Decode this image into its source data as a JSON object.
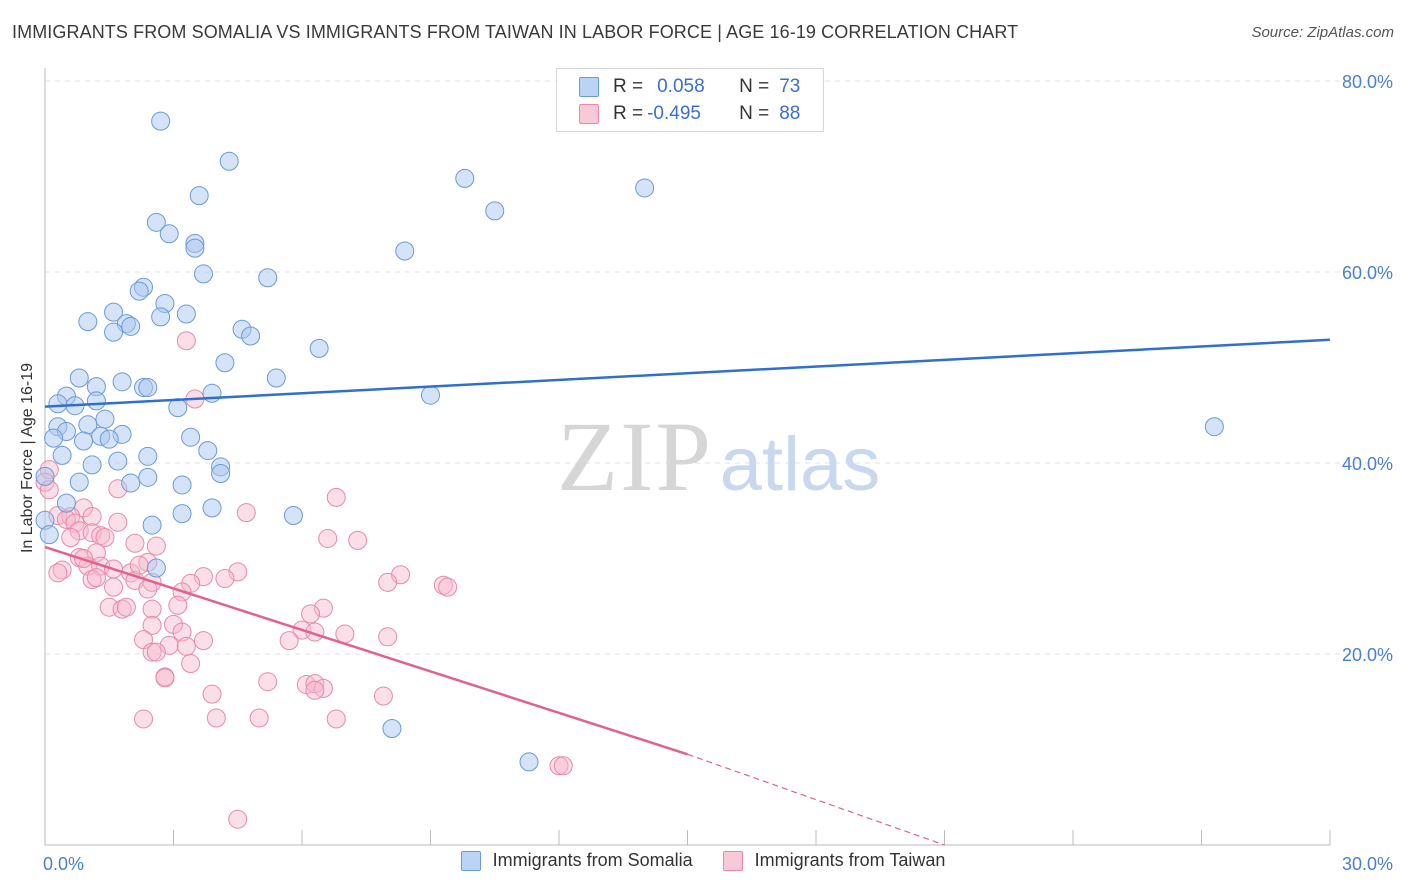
{
  "header": {
    "title": "IMMIGRANTS FROM SOMALIA VS IMMIGRANTS FROM TAIWAN IN LABOR FORCE | AGE 16-19 CORRELATION CHART",
    "source": "Source: ZipAtlas.com"
  },
  "watermark": {
    "zip": "ZIP",
    "atlas": "atlas"
  },
  "stats": {
    "somalia": {
      "r_label": "R =",
      "r_value": "0.058",
      "n_label": "N =",
      "n_value": "73"
    },
    "taiwan": {
      "r_label": "R =",
      "r_value": "-0.495",
      "n_label": "N =",
      "n_value": "88"
    }
  },
  "legend": {
    "somalia": "Immigrants from Somalia",
    "taiwan": "Immigrants from Taiwan"
  },
  "colors": {
    "somalia_fill": "#a9c8f0",
    "somalia_stroke": "#6a9ad8",
    "somalia_line": "#2f6fd0",
    "taiwan_fill": "#f6b8cb",
    "taiwan_stroke": "#e88aa8",
    "taiwan_line": "#e0628e",
    "tick_label": "#4a7fd0",
    "grid": "#e2e2e2"
  },
  "chart_data": {
    "type": "scatter",
    "title": "IMMIGRANTS FROM SOMALIA VS IMMIGRANTS FROM TAIWAN IN LABOR FORCE | AGE 16-19 CORRELATION CHART",
    "xlabel": "",
    "ylabel": "In Labor Force | Age 16-19",
    "xlim": [
      0,
      30
    ],
    "ylim": [
      0,
      80
    ],
    "x_tick_labels": [
      "0.0%",
      "30.0%"
    ],
    "y_ticks": [
      20,
      40,
      60,
      80
    ],
    "y_tick_labels": [
      "20.0%",
      "40.0%",
      "60.0%",
      "80.0%"
    ],
    "grid": true,
    "legend_position": "bottom",
    "series": [
      {
        "name": "Immigrants from Somalia",
        "trend": {
          "x": [
            0,
            30
          ],
          "y": [
            45.9,
            52.9
          ]
        },
        "points": [
          [
            2.7,
            75.8
          ],
          [
            4.3,
            71.6
          ],
          [
            9.8,
            69.8
          ],
          [
            14.0,
            68.8
          ],
          [
            3.6,
            68.0
          ],
          [
            10.5,
            66.4
          ],
          [
            2.6,
            65.2
          ],
          [
            2.9,
            64.0
          ],
          [
            3.5,
            63.0
          ],
          [
            3.5,
            62.5
          ],
          [
            8.4,
            62.2
          ],
          [
            3.7,
            59.8
          ],
          [
            5.2,
            59.4
          ],
          [
            2.3,
            58.4
          ],
          [
            2.2,
            58.0
          ],
          [
            2.8,
            56.7
          ],
          [
            1.6,
            55.8
          ],
          [
            3.3,
            55.6
          ],
          [
            2.7,
            55.3
          ],
          [
            1.0,
            54.8
          ],
          [
            1.9,
            54.6
          ],
          [
            2.0,
            54.3
          ],
          [
            1.6,
            53.7
          ],
          [
            4.6,
            54.0
          ],
          [
            4.8,
            53.3
          ],
          [
            6.4,
            52.0
          ],
          [
            4.2,
            50.5
          ],
          [
            0.8,
            48.9
          ],
          [
            5.4,
            48.9
          ],
          [
            1.8,
            48.5
          ],
          [
            1.2,
            48.0
          ],
          [
            2.3,
            47.9
          ],
          [
            2.4,
            47.9
          ],
          [
            0.5,
            47.0
          ],
          [
            3.9,
            47.3
          ],
          [
            9.0,
            47.1
          ],
          [
            0.3,
            46.2
          ],
          [
            1.2,
            46.5
          ],
          [
            0.7,
            46.0
          ],
          [
            3.1,
            45.8
          ],
          [
            1.4,
            44.6
          ],
          [
            1.0,
            44.0
          ],
          [
            0.3,
            43.8
          ],
          [
            0.5,
            43.3
          ],
          [
            1.8,
            43.0
          ],
          [
            1.3,
            42.8
          ],
          [
            1.5,
            42.5
          ],
          [
            3.4,
            42.7
          ],
          [
            0.9,
            42.3
          ],
          [
            0.2,
            42.6
          ],
          [
            3.8,
            41.3
          ],
          [
            0.4,
            40.8
          ],
          [
            2.4,
            40.7
          ],
          [
            1.7,
            40.2
          ],
          [
            1.1,
            39.8
          ],
          [
            4.1,
            39.6
          ],
          [
            4.1,
            38.9
          ],
          [
            2.4,
            38.5
          ],
          [
            0.8,
            38.0
          ],
          [
            3.2,
            37.7
          ],
          [
            2.0,
            37.9
          ],
          [
            0.0,
            38.6
          ],
          [
            0.5,
            35.8
          ],
          [
            3.9,
            35.3
          ],
          [
            3.2,
            34.7
          ],
          [
            5.8,
            34.5
          ],
          [
            2.5,
            33.5
          ],
          [
            0.0,
            34.0
          ],
          [
            0.1,
            32.5
          ],
          [
            2.6,
            29.0
          ],
          [
            8.1,
            12.2
          ],
          [
            11.3,
            8.7
          ],
          [
            27.3,
            43.8
          ]
        ]
      },
      {
        "name": "Immigrants from Taiwan",
        "trend": {
          "x": [
            0,
            15
          ],
          "y": [
            31.2,
            9.5
          ]
        },
        "trend_extension": {
          "x": [
            15,
            21
          ],
          "y": [
            9.5,
            0
          ]
        },
        "points": [
          [
            0.1,
            39.3
          ],
          [
            0.0,
            38.0
          ],
          [
            0.1,
            37.2
          ],
          [
            3.3,
            52.8
          ],
          [
            3.5,
            46.7
          ],
          [
            1.7,
            37.3
          ],
          [
            6.8,
            36.4
          ],
          [
            0.9,
            35.3
          ],
          [
            4.7,
            34.8
          ],
          [
            0.3,
            34.5
          ],
          [
            0.6,
            34.4
          ],
          [
            1.1,
            34.4
          ],
          [
            0.5,
            34.1
          ],
          [
            0.7,
            33.7
          ],
          [
            1.7,
            33.8
          ],
          [
            0.8,
            32.9
          ],
          [
            1.1,
            32.7
          ],
          [
            1.3,
            32.4
          ],
          [
            0.6,
            32.2
          ],
          [
            1.4,
            32.2
          ],
          [
            6.6,
            32.1
          ],
          [
            7.3,
            31.9
          ],
          [
            2.1,
            31.6
          ],
          [
            2.6,
            31.3
          ],
          [
            1.2,
            30.6
          ],
          [
            0.8,
            30.1
          ],
          [
            2.4,
            29.6
          ],
          [
            1.0,
            29.2
          ],
          [
            1.3,
            29.2
          ],
          [
            1.6,
            28.9
          ],
          [
            0.4,
            28.8
          ],
          [
            2.0,
            28.5
          ],
          [
            3.7,
            28.1
          ],
          [
            4.5,
            28.6
          ],
          [
            8.3,
            28.3
          ],
          [
            1.1,
            27.8
          ],
          [
            2.1,
            27.7
          ],
          [
            2.5,
            27.5
          ],
          [
            3.4,
            27.4
          ],
          [
            8.0,
            27.5
          ],
          [
            9.3,
            27.2
          ],
          [
            9.4,
            27.0
          ],
          [
            1.6,
            27.0
          ],
          [
            2.4,
            26.8
          ],
          [
            3.2,
            26.5
          ],
          [
            3.1,
            25.1
          ],
          [
            1.5,
            24.9
          ],
          [
            1.8,
            24.7
          ],
          [
            1.9,
            24.9
          ],
          [
            2.5,
            24.7
          ],
          [
            6.5,
            24.8
          ],
          [
            6.2,
            24.2
          ],
          [
            3.0,
            23.1
          ],
          [
            2.5,
            23.0
          ],
          [
            6.0,
            22.5
          ],
          [
            6.3,
            22.3
          ],
          [
            3.2,
            22.3
          ],
          [
            7.0,
            22.1
          ],
          [
            8.0,
            21.8
          ],
          [
            2.3,
            21.5
          ],
          [
            3.7,
            21.4
          ],
          [
            5.7,
            21.4
          ],
          [
            2.9,
            20.9
          ],
          [
            3.3,
            20.8
          ],
          [
            2.5,
            20.2
          ],
          [
            2.6,
            20.2
          ],
          [
            3.4,
            19.0
          ],
          [
            2.8,
            17.6
          ],
          [
            2.8,
            17.5
          ],
          [
            5.2,
            17.1
          ],
          [
            6.1,
            16.8
          ],
          [
            6.3,
            16.9
          ],
          [
            6.5,
            16.4
          ],
          [
            6.3,
            16.2
          ],
          [
            3.9,
            15.8
          ],
          [
            7.9,
            15.6
          ],
          [
            2.3,
            13.2
          ],
          [
            4.0,
            13.3
          ],
          [
            5.0,
            13.3
          ],
          [
            6.8,
            13.2
          ],
          [
            12.0,
            8.3
          ],
          [
            12.1,
            8.3
          ],
          [
            4.5,
            2.7
          ],
          [
            0.3,
            28.5
          ],
          [
            1.2,
            28.0
          ],
          [
            2.2,
            29.3
          ],
          [
            0.9,
            30.0
          ],
          [
            4.2,
            27.9
          ]
        ]
      }
    ]
  }
}
